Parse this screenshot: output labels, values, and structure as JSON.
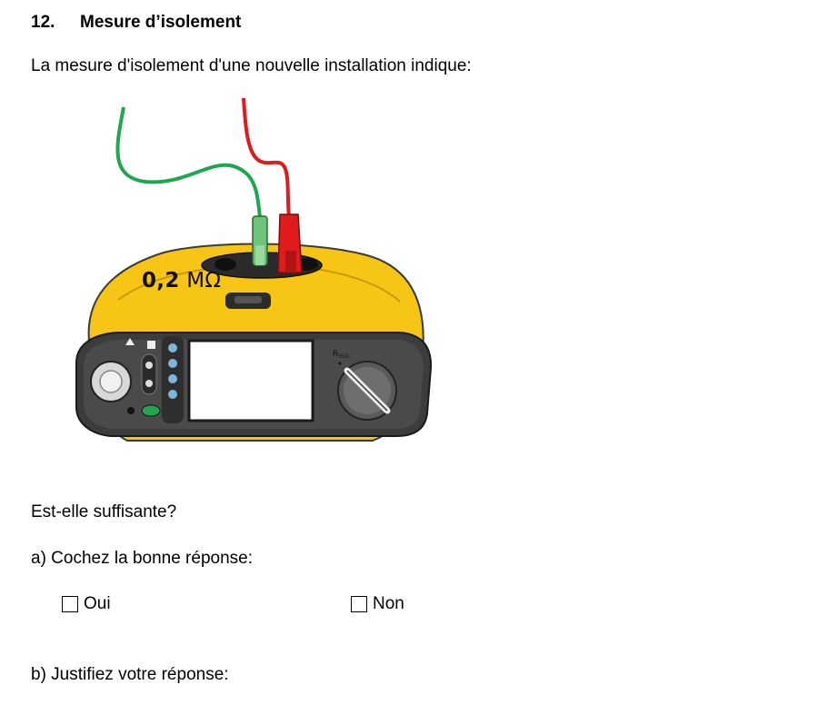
{
  "heading": {
    "number": "12.",
    "title": "Mesure d’isolement"
  },
  "intro": "La mesure d'isolement d'une nouvelle installation indique:",
  "meter": {
    "display_number": "0,2",
    "display_unit": "MΩ",
    "dial_label": "RISO",
    "body_color": "#F7C515",
    "lead_colors": {
      "green": "#1DA84E",
      "red": "#E01B1B"
    }
  },
  "question": "Est-elle suffisante?",
  "part_a": "a) Cochez la bonne réponse:",
  "options": [
    {
      "label": "Oui",
      "checked": false
    },
    {
      "label": "Non",
      "checked": false
    }
  ],
  "part_b": "b) Justifiez votre réponse:"
}
